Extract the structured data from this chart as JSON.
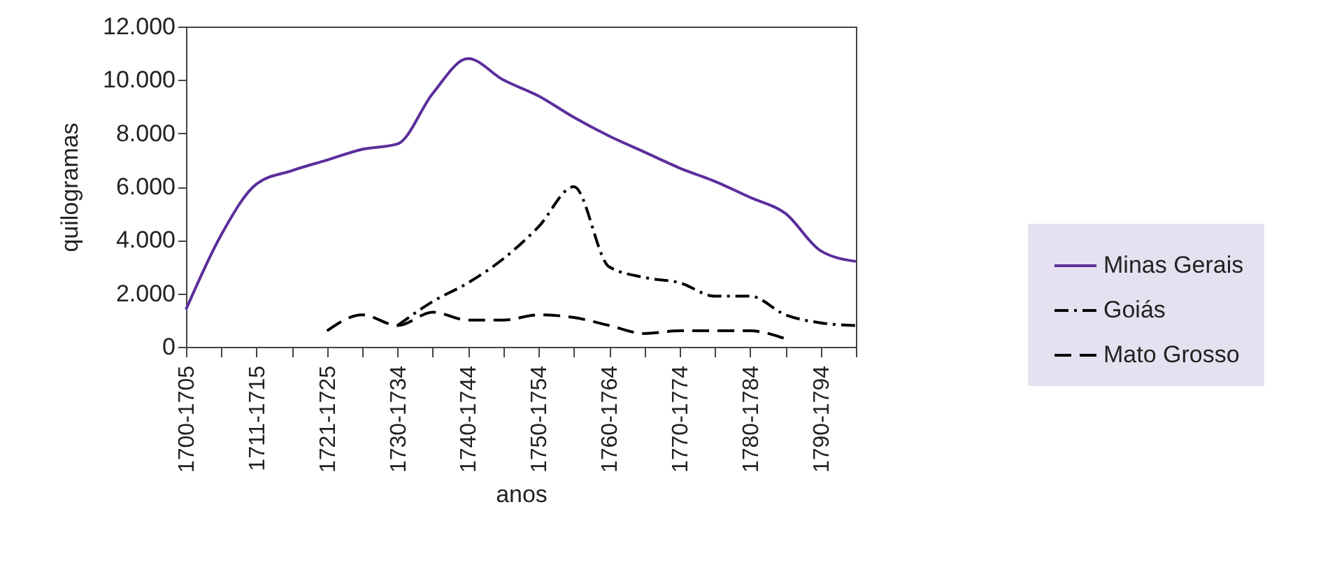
{
  "chart_data": {
    "type": "line",
    "xlabel": "anos",
    "ylabel": "quilogramas",
    "categories": [
      "1700-1705",
      null,
      "1711-1715",
      null,
      "1721-1725",
      null,
      "1730-1734",
      null,
      "1740-1744",
      null,
      "1750-1754",
      null,
      "1760-1764",
      null,
      "1770-1774",
      null,
      "1780-1784",
      null,
      "1790-1794",
      null
    ],
    "series": [
      {
        "name": "Minas Gerais",
        "color": "#5b2e9b",
        "line_style": "solid",
        "values": [
          1400,
          4200,
          6100,
          6600,
          7000,
          7400,
          7600,
          9500,
          10800,
          10000,
          9400,
          8600,
          7900,
          7300,
          6700,
          6200,
          5600,
          5000,
          3600,
          3200
        ]
      },
      {
        "name": "Goiás",
        "color": "#000000",
        "line_style": "dashdot",
        "values": [
          null,
          null,
          null,
          null,
          null,
          null,
          800,
          1700,
          2400,
          3300,
          4500,
          6000,
          3000,
          2600,
          2400,
          1900,
          1900,
          1200,
          900,
          800
        ]
      },
      {
        "name": "Mato Grosso",
        "color": "#000000",
        "line_style": "dashed",
        "values": [
          null,
          null,
          null,
          null,
          600,
          1200,
          800,
          1300,
          1000,
          1000,
          1200,
          1100,
          800,
          500,
          600,
          600,
          600,
          300,
          null,
          null
        ]
      }
    ],
    "ylim": [
      0,
      12000
    ],
    "yticks": [
      {
        "value": 0,
        "label": "0"
      },
      {
        "value": 2000,
        "label": "2.000"
      },
      {
        "value": 4000,
        "label": "4.000"
      },
      {
        "value": 6000,
        "label": "6.000"
      },
      {
        "value": 8000,
        "label": "8.000"
      },
      {
        "value": 10000,
        "label": "10.000"
      },
      {
        "value": 12000,
        "label": "12.000"
      }
    ],
    "grid": false,
    "legend": "right",
    "marker": "none"
  }
}
